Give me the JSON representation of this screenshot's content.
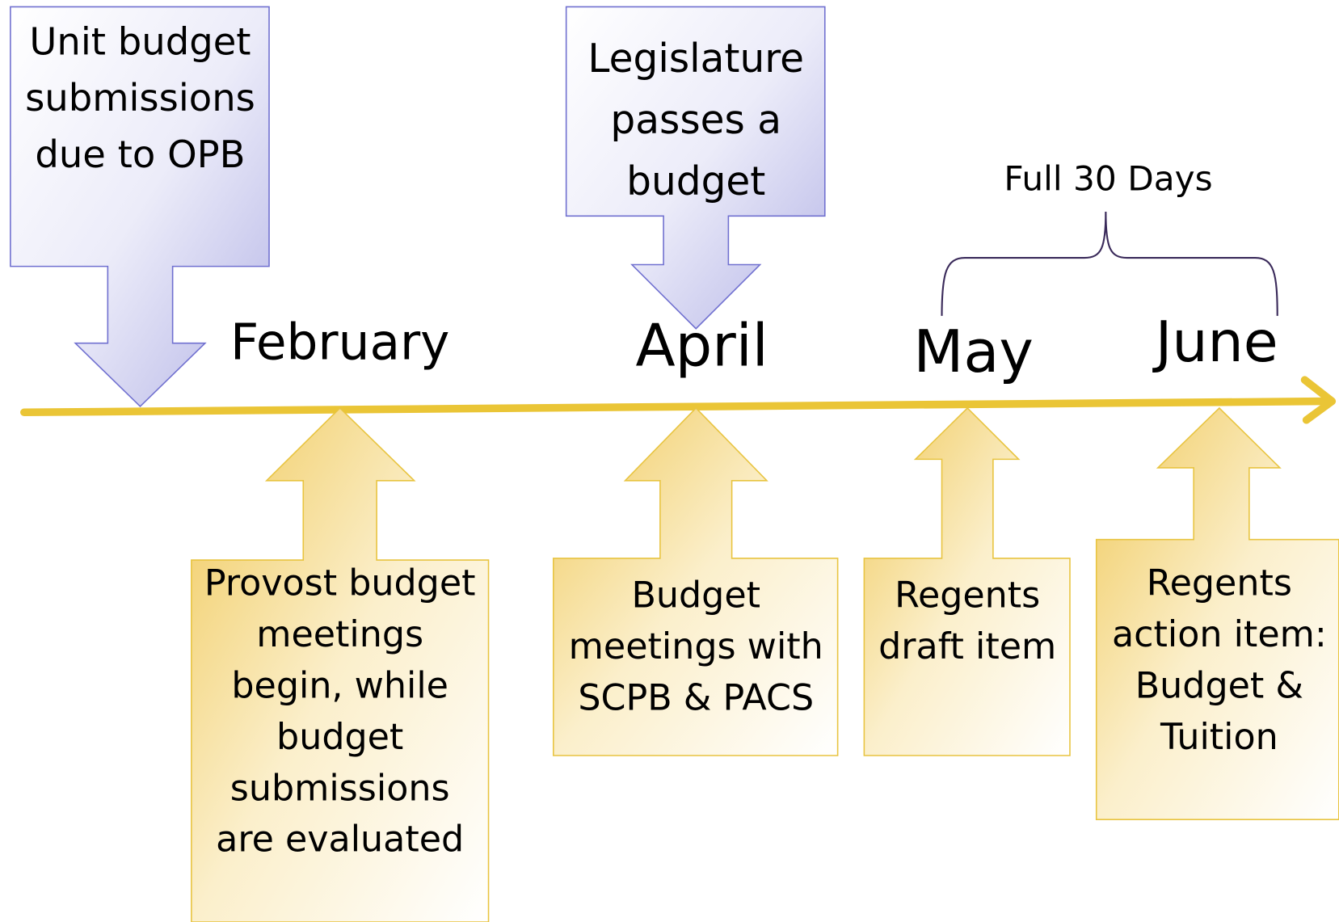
{
  "months": [
    "February",
    "April",
    "May",
    "June"
  ],
  "top_callouts": [
    {
      "lines": [
        "Unit budget",
        "submissions",
        "due to OPB"
      ]
    },
    {
      "lines": [
        "Legislature",
        "passes a",
        "budget"
      ]
    }
  ],
  "bottom_callouts": [
    {
      "lines": [
        "Provost budget",
        "meetings",
        "begin, while",
        "budget",
        "submissions",
        "are evaluated"
      ]
    },
    {
      "lines": [
        "Budget",
        "meetings with",
        "SCPB & PACS"
      ]
    },
    {
      "lines": [
        "Regents",
        "draft item"
      ]
    },
    {
      "lines": [
        "Regents",
        "action item:",
        "Budget &",
        "Tuition"
      ]
    }
  ],
  "brace_label": "Full 30 Days"
}
